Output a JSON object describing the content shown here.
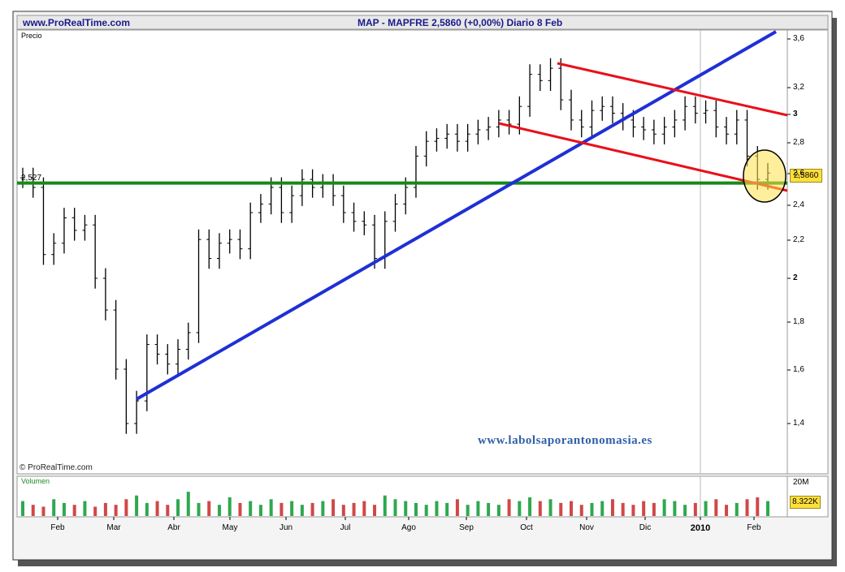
{
  "header": {
    "site": "www.ProRealTime.com",
    "title": "MAP - MAPFRE    2,5860 (+0,00%)   Diario  8 Feb"
  },
  "panel_label": "Precio",
  "volume_label": "Volumen",
  "copyright": "© ProRealTime.com",
  "watermark": "www.labolsaporantonomasia.es",
  "reference_level_label": "2,527",
  "last_price_label": "2,5860",
  "last_volume_label": "8.322K",
  "volume_axis_label": "20M",
  "y_tick_labels": [
    "3,6",
    "3,2",
    "3",
    "2,8",
    "2,6",
    "2,4",
    "2,2",
    "2",
    "1,8",
    "1,6",
    "1,4"
  ],
  "x_tick_labels": [
    "Feb",
    "Mar",
    "Abr",
    "May",
    "Jun",
    "Jul",
    "Ago",
    "Sep",
    "Oct",
    "Nov",
    "Dic",
    "2010",
    "Feb"
  ],
  "colors": {
    "header_text": "#1a1a8c",
    "uptrend_line": "#1f2fd6",
    "channel_lines": "#e8101a",
    "support_line": "#168a16",
    "highlight_circle": "#ffe14a",
    "volume_up": "#2fa84f",
    "volume_down": "#d04848",
    "watermark": "#2f5fa8"
  },
  "chart_data": {
    "type": "ohlc",
    "ylim": [
      1.3,
      3.7
    ],
    "scale": "log",
    "series": [
      {
        "values": [
          2.56,
          2.5,
          2.12,
          2.18,
          2.32,
          2.25,
          2.28,
          2.0,
          1.85,
          1.6,
          1.4,
          1.48,
          1.7,
          1.66,
          1.62,
          1.68,
          1.75,
          2.2,
          2.1,
          2.18,
          2.2,
          2.15,
          2.35,
          2.4,
          2.5,
          2.35,
          2.45,
          2.55,
          2.5,
          2.52,
          2.45,
          2.35,
          2.3,
          2.28,
          2.1,
          2.3,
          2.4,
          2.5,
          2.7,
          2.8,
          2.82,
          2.85,
          2.8,
          2.85,
          2.88,
          2.9,
          2.95,
          2.92,
          3.05,
          3.3,
          3.25,
          3.35,
          3.1,
          2.95,
          2.9,
          3.02,
          3.05,
          3.0,
          2.95,
          2.9,
          2.88,
          2.85,
          2.9,
          2.95,
          3.05,
          3.0,
          3.02,
          2.9,
          2.85,
          2.95,
          2.7,
          2.55,
          2.59
        ]
      }
    ],
    "volume": [
      8,
      6,
      5,
      9,
      7,
      6,
      8,
      5,
      7,
      6,
      9,
      11,
      7,
      8,
      6,
      9,
      13,
      7,
      8,
      6,
      10,
      7,
      8,
      6,
      9,
      7,
      8,
      6,
      7,
      8,
      9,
      6,
      7,
      8,
      6,
      11,
      9,
      8,
      7,
      6,
      8,
      7,
      9,
      6,
      8,
      7,
      6,
      9,
      8,
      10,
      8,
      9,
      7,
      8,
      6,
      7,
      8,
      9,
      7,
      6,
      8,
      7,
      9,
      8,
      6,
      7,
      8,
      9,
      6,
      7,
      9,
      10,
      8
    ],
    "annotations": {
      "support_level": 2.527,
      "uptrend_line": {
        "from": {
          "x": "Mar",
          "y": 1.5
        },
        "to": {
          "x": "2010 Feb",
          "y": 3.65
        }
      },
      "channel_upper": {
        "from": {
          "x": "Oct",
          "y": 3.45
        },
        "to": {
          "x": "2010 Feb",
          "y": 3.0
        }
      },
      "channel_lower": {
        "from": {
          "x": "Sep",
          "y": 2.95
        },
        "to": {
          "x": "2010 Feb",
          "y": 2.52
        }
      }
    }
  }
}
